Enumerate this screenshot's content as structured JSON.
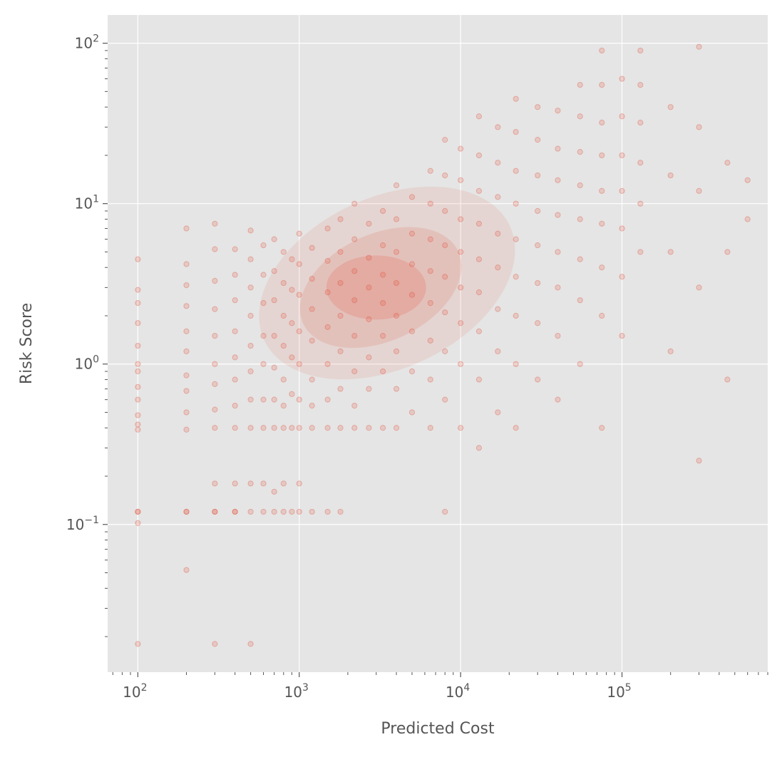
{
  "chart_data": {
    "type": "scatter",
    "title": "",
    "xlabel": "Predicted Cost",
    "ylabel": "Risk Score",
    "xscale": "log",
    "yscale": "log",
    "xlim": [
      65,
      800000
    ],
    "ylim": [
      0.012,
      150
    ],
    "grid": true,
    "legend": "none",
    "style": {
      "background": "#E5E5E5",
      "grid_color": "#FFFFFF",
      "point_color": "#E24A33",
      "point_opacity": 0.07
    },
    "x_ticks": [
      {
        "value": 100,
        "base": "10",
        "exp": "2"
      },
      {
        "value": 1000,
        "base": "10",
        "exp": "3"
      },
      {
        "value": 10000,
        "base": "10",
        "exp": "4"
      },
      {
        "value": 100000,
        "base": "10",
        "exp": "5"
      }
    ],
    "y_ticks": [
      {
        "value": 100,
        "base": "10",
        "exp": "2"
      },
      {
        "value": 10,
        "base": "10",
        "exp": "1"
      },
      {
        "value": 1,
        "base": "10",
        "exp": "0"
      },
      {
        "value": 0.1,
        "base": "10",
        "exp": "−1"
      }
    ],
    "series": [
      {
        "values": [
          [
            100,
            0.018
          ],
          [
            100,
            0.102
          ],
          [
            100,
            0.12
          ],
          [
            100,
            0.12
          ],
          [
            100,
            0.39
          ],
          [
            100,
            0.42
          ],
          [
            100,
            0.48
          ],
          [
            100,
            0.6
          ],
          [
            100,
            0.72
          ],
          [
            100,
            0.9
          ],
          [
            100,
            1.0
          ],
          [
            100,
            1.3
          ],
          [
            100,
            1.8
          ],
          [
            100,
            2.4
          ],
          [
            100,
            2.9
          ],
          [
            100,
            4.5
          ],
          [
            200,
            0.052
          ],
          [
            200,
            0.12
          ],
          [
            200,
            0.12
          ],
          [
            200,
            0.39
          ],
          [
            200,
            0.5
          ],
          [
            200,
            0.68
          ],
          [
            200,
            0.85
          ],
          [
            200,
            1.2
          ],
          [
            200,
            1.6
          ],
          [
            200,
            2.3
          ],
          [
            200,
            3.1
          ],
          [
            200,
            4.2
          ],
          [
            200,
            7.0
          ],
          [
            300,
            0.018
          ],
          [
            300,
            0.12
          ],
          [
            300,
            0.12
          ],
          [
            300,
            0.18
          ],
          [
            300,
            0.4
          ],
          [
            300,
            0.52
          ],
          [
            300,
            0.75
          ],
          [
            300,
            1.0
          ],
          [
            300,
            1.5
          ],
          [
            300,
            2.2
          ],
          [
            300,
            3.3
          ],
          [
            300,
            5.2
          ],
          [
            300,
            7.5
          ],
          [
            400,
            0.12
          ],
          [
            400,
            0.12
          ],
          [
            400,
            0.18
          ],
          [
            400,
            0.4
          ],
          [
            400,
            0.55
          ],
          [
            400,
            0.8
          ],
          [
            400,
            1.1
          ],
          [
            400,
            1.6
          ],
          [
            400,
            2.5
          ],
          [
            400,
            3.6
          ],
          [
            400,
            5.2
          ],
          [
            500,
            0.018
          ],
          [
            500,
            0.12
          ],
          [
            500,
            0.18
          ],
          [
            500,
            0.4
          ],
          [
            500,
            0.6
          ],
          [
            500,
            0.9
          ],
          [
            500,
            1.3
          ],
          [
            500,
            2.0
          ],
          [
            500,
            3.0
          ],
          [
            500,
            4.5
          ],
          [
            500,
            6.8
          ],
          [
            600,
            0.12
          ],
          [
            600,
            0.18
          ],
          [
            600,
            0.4
          ],
          [
            600,
            0.6
          ],
          [
            600,
            1.0
          ],
          [
            600,
            1.5
          ],
          [
            600,
            2.4
          ],
          [
            600,
            3.6
          ],
          [
            600,
            5.5
          ],
          [
            700,
            0.12
          ],
          [
            700,
            0.16
          ],
          [
            700,
            0.4
          ],
          [
            700,
            0.6
          ],
          [
            700,
            0.95
          ],
          [
            700,
            1.5
          ],
          [
            700,
            2.5
          ],
          [
            700,
            3.8
          ],
          [
            700,
            6.0
          ],
          [
            800,
            0.12
          ],
          [
            800,
            0.18
          ],
          [
            800,
            0.4
          ],
          [
            800,
            0.55
          ],
          [
            800,
            0.8
          ],
          [
            800,
            1.3
          ],
          [
            800,
            2.0
          ],
          [
            800,
            3.2
          ],
          [
            800,
            5.0
          ],
          [
            900,
            0.12
          ],
          [
            900,
            0.4
          ],
          [
            900,
            0.65
          ],
          [
            900,
            1.1
          ],
          [
            900,
            1.8
          ],
          [
            900,
            2.9
          ],
          [
            900,
            4.5
          ],
          [
            1000,
            0.12
          ],
          [
            1000,
            0.18
          ],
          [
            1000,
            0.4
          ],
          [
            1000,
            0.6
          ],
          [
            1000,
            1.0
          ],
          [
            1000,
            1.6
          ],
          [
            1000,
            2.7
          ],
          [
            1000,
            4.2
          ],
          [
            1000,
            6.5
          ],
          [
            1200,
            0.12
          ],
          [
            1200,
            0.4
          ],
          [
            1200,
            0.55
          ],
          [
            1200,
            0.8
          ],
          [
            1200,
            1.4
          ],
          [
            1200,
            2.2
          ],
          [
            1200,
            3.4
          ],
          [
            1200,
            5.3
          ],
          [
            1500,
            0.12
          ],
          [
            1500,
            0.4
          ],
          [
            1500,
            0.6
          ],
          [
            1500,
            1.0
          ],
          [
            1500,
            1.7
          ],
          [
            1500,
            2.8
          ],
          [
            1500,
            4.4
          ],
          [
            1500,
            7.0
          ],
          [
            1800,
            0.12
          ],
          [
            1800,
            0.4
          ],
          [
            1800,
            0.7
          ],
          [
            1800,
            1.2
          ],
          [
            1800,
            2.0
          ],
          [
            1800,
            3.2
          ],
          [
            1800,
            5.0
          ],
          [
            1800,
            8.0
          ],
          [
            2200,
            0.4
          ],
          [
            2200,
            0.55
          ],
          [
            2200,
            0.9
          ],
          [
            2200,
            1.5
          ],
          [
            2200,
            2.5
          ],
          [
            2200,
            3.8
          ],
          [
            2200,
            6.0
          ],
          [
            2200,
            10.0
          ],
          [
            2700,
            0.4
          ],
          [
            2700,
            0.7
          ],
          [
            2700,
            1.1
          ],
          [
            2700,
            1.9
          ],
          [
            2700,
            3.0
          ],
          [
            2700,
            4.6
          ],
          [
            2700,
            7.5
          ],
          [
            3300,
            0.4
          ],
          [
            3300,
            0.9
          ],
          [
            3300,
            1.5
          ],
          [
            3300,
            2.4
          ],
          [
            3300,
            3.6
          ],
          [
            3300,
            5.5
          ],
          [
            3300,
            9.0
          ],
          [
            4000,
            0.4
          ],
          [
            4000,
            0.7
          ],
          [
            4000,
            1.2
          ],
          [
            4000,
            2.0
          ],
          [
            4000,
            3.2
          ],
          [
            4000,
            5.0
          ],
          [
            4000,
            8.0
          ],
          [
            4000,
            13.0
          ],
          [
            5000,
            0.5
          ],
          [
            5000,
            0.9
          ],
          [
            5000,
            1.6
          ],
          [
            5000,
            2.7
          ],
          [
            5000,
            4.2
          ],
          [
            5000,
            6.5
          ],
          [
            5000,
            11.0
          ],
          [
            6500,
            0.4
          ],
          [
            6500,
            0.8
          ],
          [
            6500,
            1.4
          ],
          [
            6500,
            2.4
          ],
          [
            6500,
            3.8
          ],
          [
            6500,
            6.0
          ],
          [
            6500,
            10.0
          ],
          [
            6500,
            16.0
          ],
          [
            8000,
            0.12
          ],
          [
            8000,
            0.6
          ],
          [
            8000,
            1.2
          ],
          [
            8000,
            2.1
          ],
          [
            8000,
            3.5
          ],
          [
            8000,
            5.5
          ],
          [
            8000,
            9.0
          ],
          [
            8000,
            15.0
          ],
          [
            8000,
            25.0
          ],
          [
            10000,
            0.4
          ],
          [
            10000,
            1.0
          ],
          [
            10000,
            1.8
          ],
          [
            10000,
            3.0
          ],
          [
            10000,
            5.0
          ],
          [
            10000,
            8.0
          ],
          [
            10000,
            14.0
          ],
          [
            10000,
            22.0
          ],
          [
            13000,
            0.3
          ],
          [
            13000,
            0.8
          ],
          [
            13000,
            1.6
          ],
          [
            13000,
            2.8
          ],
          [
            13000,
            4.5
          ],
          [
            13000,
            7.5
          ],
          [
            13000,
            12.0
          ],
          [
            13000,
            20.0
          ],
          [
            13000,
            35.0
          ],
          [
            17000,
            0.5
          ],
          [
            17000,
            1.2
          ],
          [
            17000,
            2.2
          ],
          [
            17000,
            4.0
          ],
          [
            17000,
            6.5
          ],
          [
            17000,
            11.0
          ],
          [
            17000,
            18.0
          ],
          [
            17000,
            30.0
          ],
          [
            22000,
            0.4
          ],
          [
            22000,
            1.0
          ],
          [
            22000,
            2.0
          ],
          [
            22000,
            3.5
          ],
          [
            22000,
            6.0
          ],
          [
            22000,
            10.0
          ],
          [
            22000,
            16.0
          ],
          [
            22000,
            28.0
          ],
          [
            22000,
            45.0
          ],
          [
            30000,
            0.8
          ],
          [
            30000,
            1.8
          ],
          [
            30000,
            3.2
          ],
          [
            30000,
            5.5
          ],
          [
            30000,
            9.0
          ],
          [
            30000,
            15.0
          ],
          [
            30000,
            25.0
          ],
          [
            30000,
            40.0
          ],
          [
            40000,
            0.6
          ],
          [
            40000,
            1.5
          ],
          [
            40000,
            3.0
          ],
          [
            40000,
            5.0
          ],
          [
            40000,
            8.5
          ],
          [
            40000,
            14.0
          ],
          [
            40000,
            22.0
          ],
          [
            40000,
            38.0
          ],
          [
            55000,
            1.0
          ],
          [
            55000,
            2.5
          ],
          [
            55000,
            4.5
          ],
          [
            55000,
            8.0
          ],
          [
            55000,
            13.0
          ],
          [
            55000,
            21.0
          ],
          [
            55000,
            35.0
          ],
          [
            55000,
            55.0
          ],
          [
            75000,
            0.4
          ],
          [
            75000,
            2.0
          ],
          [
            75000,
            4.0
          ],
          [
            75000,
            7.5
          ],
          [
            75000,
            12.0
          ],
          [
            75000,
            20.0
          ],
          [
            75000,
            32.0
          ],
          [
            75000,
            55.0
          ],
          [
            75000,
            90.0
          ],
          [
            100000,
            1.5
          ],
          [
            100000,
            3.5
          ],
          [
            100000,
            7.0
          ],
          [
            100000,
            12.0
          ],
          [
            100000,
            20.0
          ],
          [
            100000,
            35.0
          ],
          [
            100000,
            60.0
          ],
          [
            130000,
            5.0
          ],
          [
            130000,
            10.0
          ],
          [
            130000,
            18.0
          ],
          [
            130000,
            32.0
          ],
          [
            130000,
            55.0
          ],
          [
            130000,
            90.0
          ],
          [
            200000,
            1.2
          ],
          [
            200000,
            5.0
          ],
          [
            200000,
            15.0
          ],
          [
            200000,
            40.0
          ],
          [
            300000,
            0.25
          ],
          [
            300000,
            3.0
          ],
          [
            300000,
            12.0
          ],
          [
            300000,
            30.0
          ],
          [
            300000,
            95.0
          ],
          [
            450000,
            0.8
          ],
          [
            450000,
            5.0
          ],
          [
            450000,
            18.0
          ],
          [
            600000,
            8.0
          ],
          [
            600000,
            14.0
          ]
        ]
      }
    ]
  }
}
